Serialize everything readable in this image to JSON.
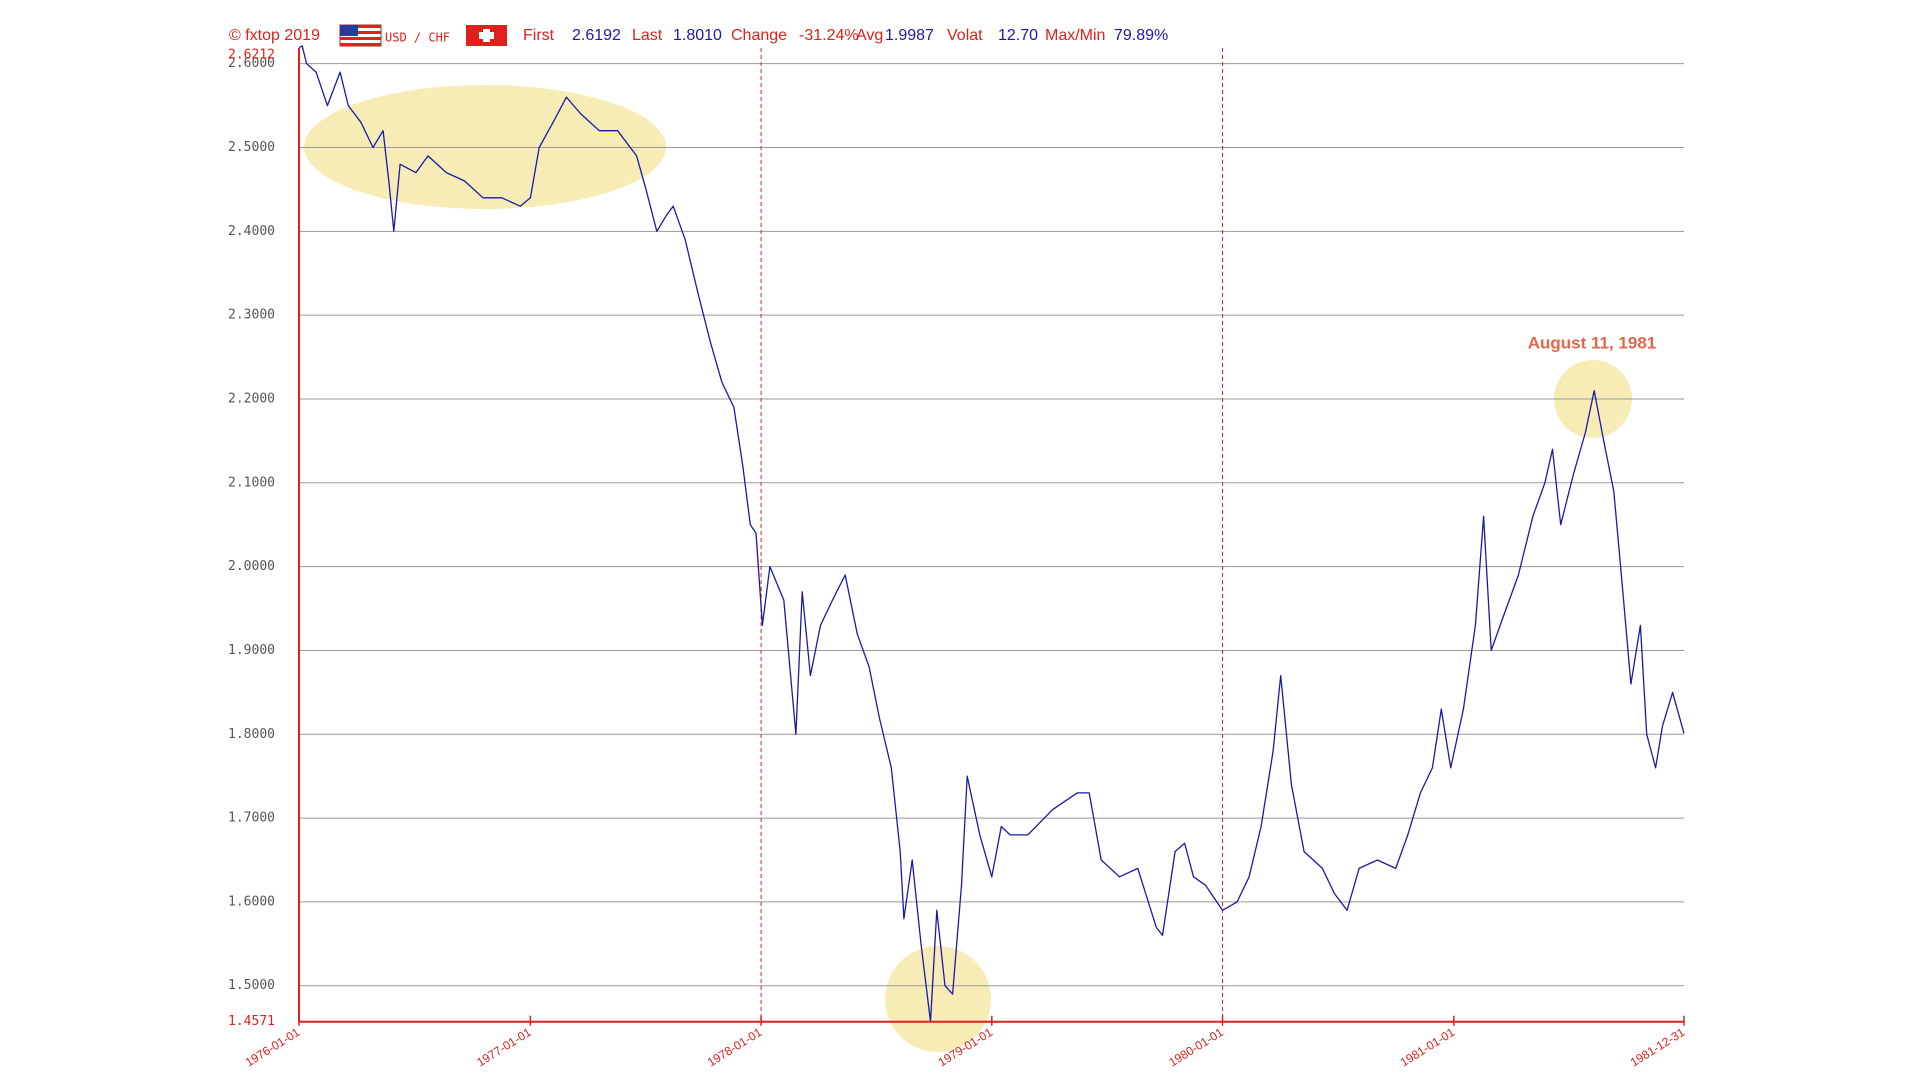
{
  "chart_data": {
    "type": "line",
    "source": "© fxtop 2019",
    "pair": "USD / CHF",
    "stats": [
      {
        "label": "First",
        "value": "2.6192"
      },
      {
        "label": "Last",
        "value": "1.8010"
      },
      {
        "label": "Change",
        "value": "-31.24%"
      },
      {
        "label": "Avg",
        "value": "1.9987"
      },
      {
        "label": "Volat",
        "value": "12.70"
      },
      {
        "label": "Max/Min",
        "value": "79.89%"
      }
    ],
    "annotation": "August 11, 1981",
    "color": "#1a1aa8",
    "x": [
      "1976-01-01",
      "1976-01-06",
      "1976-01-13",
      "1976-01-28",
      "1976-02-15",
      "1976-03-06",
      "1976-03-19",
      "1976-04-08",
      "1976-04-27",
      "1976-05-13",
      "1976-05-22",
      "1976-05-30",
      "1976-06-09",
      "1976-07-04",
      "1976-07-23",
      "1976-08-21",
      "1976-09-19",
      "1976-10-18",
      "1976-11-17",
      "1976-12-16",
      "1977-01-01",
      "1977-01-15",
      "1977-02-06",
      "1977-02-27",
      "1977-03-22",
      "1977-04-20",
      "1977-05-19",
      "1977-06-18",
      "1977-07-03",
      "1977-07-20",
      "1977-08-05",
      "1977-08-15",
      "1977-09-03",
      "1977-09-22",
      "1977-10-12",
      "1977-10-31",
      "1977-11-19",
      "1977-12-03",
      "1977-12-15",
      "1977-12-24",
      "1978-01-03",
      "1978-01-15",
      "1978-02-06",
      "1978-02-25",
      "1978-03-07",
      "1978-03-20",
      "1978-04-05",
      "1978-04-24",
      "1978-05-14",
      "1978-06-02",
      "1978-06-21",
      "1978-07-07",
      "1978-07-26",
      "1978-08-09",
      "1978-08-15",
      "1978-08-28",
      "1978-09-11",
      "1978-09-26",
      "1978-10-06",
      "1978-10-19",
      "1978-10-31",
      "1978-11-14",
      "1978-11-23",
      "1978-12-13",
      "1979-01-01",
      "1979-01-16",
      "1979-01-30",
      "1979-02-27",
      "1979-04-07",
      "1979-05-16",
      "1979-06-04",
      "1979-06-23",
      "1979-07-22",
      "1979-08-20",
      "1979-09-18",
      "1979-09-28",
      "1979-10-18",
      "1979-11-02",
      "1979-11-16",
      "1979-12-05",
      "1980-01-01",
      "1980-01-24",
      "1980-02-12",
      "1980-03-02",
      "1980-03-21",
      "1980-04-02",
      "1980-04-19",
      "1980-05-09",
      "1980-06-07",
      "1980-06-26",
      "1980-07-16",
      "1980-08-04",
      "1980-09-02",
      "1980-10-01",
      "1980-10-20",
      "1980-11-09",
      "1980-11-28",
      "1980-12-12",
      "1980-12-27",
      "1981-01-16",
      "1981-02-04",
      "1981-02-17",
      "1981-03-01",
      "1981-03-20",
      "1981-04-13",
      "1981-05-06",
      "1981-05-25",
      "1981-06-06",
      "1981-06-19",
      "1981-07-09",
      "1981-07-28",
      "1981-08-11",
      "1981-08-26",
      "1981-09-11",
      "1981-09-24",
      "1981-10-08",
      "1981-10-23",
      "1981-11-02",
      "1981-11-16",
      "1981-11-27",
      "1981-12-13",
      "1981-12-31"
    ],
    "values": [
      2.6192,
      2.6212,
      2.6,
      2.59,
      2.55,
      2.59,
      2.55,
      2.53,
      2.5,
      2.52,
      2.46,
      2.4,
      2.48,
      2.47,
      2.49,
      2.47,
      2.46,
      2.44,
      2.44,
      2.43,
      2.44,
      2.5,
      2.53,
      2.56,
      2.54,
      2.52,
      2.52,
      2.49,
      2.45,
      2.4,
      2.42,
      2.43,
      2.39,
      2.33,
      2.27,
      2.22,
      2.19,
      2.12,
      2.05,
      2.04,
      1.93,
      2.0,
      1.96,
      1.8,
      1.97,
      1.87,
      1.93,
      1.96,
      1.99,
      1.92,
      1.88,
      1.82,
      1.76,
      1.66,
      1.58,
      1.65,
      1.55,
      1.4571,
      1.59,
      1.5,
      1.49,
      1.62,
      1.75,
      1.68,
      1.63,
      1.69,
      1.68,
      1.68,
      1.71,
      1.73,
      1.73,
      1.65,
      1.63,
      1.64,
      1.57,
      1.56,
      1.66,
      1.67,
      1.63,
      1.62,
      1.59,
      1.6,
      1.63,
      1.69,
      1.78,
      1.87,
      1.74,
      1.66,
      1.64,
      1.61,
      1.59,
      1.64,
      1.65,
      1.64,
      1.68,
      1.73,
      1.76,
      1.83,
      1.76,
      1.83,
      1.93,
      2.06,
      1.9,
      1.94,
      1.99,
      2.06,
      2.1,
      2.14,
      2.05,
      2.11,
      2.16,
      2.21,
      2.15,
      2.09,
      1.98,
      1.86,
      1.93,
      1.8,
      1.76,
      1.81,
      1.85,
      1.801
    ],
    "xlim": [
      "1976-01-01",
      "1981-12-31"
    ],
    "xticks": [
      "1976-01-01",
      "1977-01-01",
      "1978-01-01",
      "1979-01-01",
      "1980-01-01",
      "1981-01-01",
      "1981-12-31"
    ],
    "ylim": [
      1.4571,
      2.6212
    ],
    "yticks": [
      {
        "value": 2.6,
        "label": "2.6000"
      },
      {
        "value": 2.5,
        "label": "2.5000"
      },
      {
        "value": 2.4,
        "label": "2.4000"
      },
      {
        "value": 2.3,
        "label": "2.3000"
      },
      {
        "value": 2.2,
        "label": "2.2000"
      },
      {
        "value": 2.1,
        "label": "2.1000"
      },
      {
        "value": 2.0,
        "label": "2.0000"
      },
      {
        "value": 1.9,
        "label": "1.9000"
      },
      {
        "value": 1.8,
        "label": "1.8000"
      },
      {
        "value": 1.7,
        "label": "1.7000"
      },
      {
        "value": 1.6,
        "label": "1.6000"
      },
      {
        "value": 1.5,
        "label": "1.5000"
      }
    ],
    "grid": true
  }
}
